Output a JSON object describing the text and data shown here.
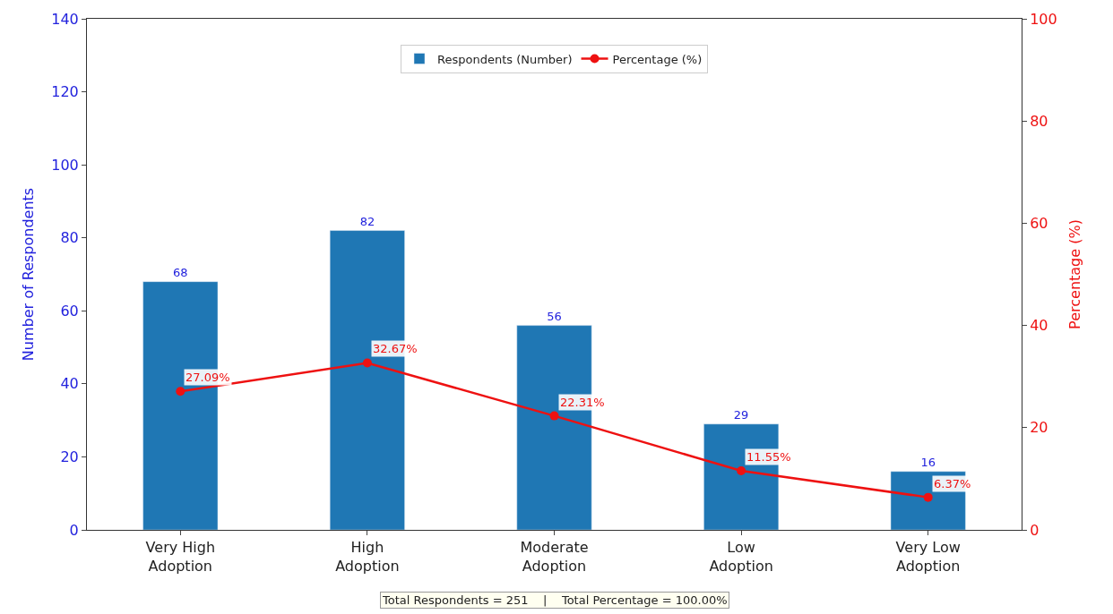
{
  "chart_data": {
    "type": "bar",
    "categories": [
      "Very High\nAdoption",
      "High\nAdoption",
      "Moderate\nAdoption",
      "Low\nAdoption",
      "Very Low\nAdoption"
    ],
    "series": [
      {
        "name": "Respondents (Number)",
        "color": "#1f77b4",
        "values": [
          68,
          82,
          56,
          29,
          16
        ],
        "value_labels": [
          "68",
          "82",
          "56",
          "29",
          "16"
        ]
      },
      {
        "name": "Percentage (%)",
        "type": "line",
        "axis": "y2",
        "color": "#ee1111",
        "marker": "circle",
        "values": [
          27.09,
          32.67,
          22.31,
          11.55,
          6.37
        ],
        "value_labels": [
          "27.09%",
          "32.67%",
          "22.31%",
          "11.55%",
          "6.37%"
        ]
      }
    ],
    "ylabel": "Number of Respondents",
    "y2label": "Percentage (%)",
    "ylim": [
      0,
      140
    ],
    "yticks": [
      0,
      20,
      40,
      60,
      80,
      100,
      120,
      140
    ],
    "y2lim": [
      0,
      100
    ],
    "y2ticks": [
      0,
      20,
      40,
      60,
      80,
      100
    ],
    "legend": "top",
    "annotations": [
      "Total Respondents = 251    |    Total Percentage = 100.00%"
    ]
  }
}
